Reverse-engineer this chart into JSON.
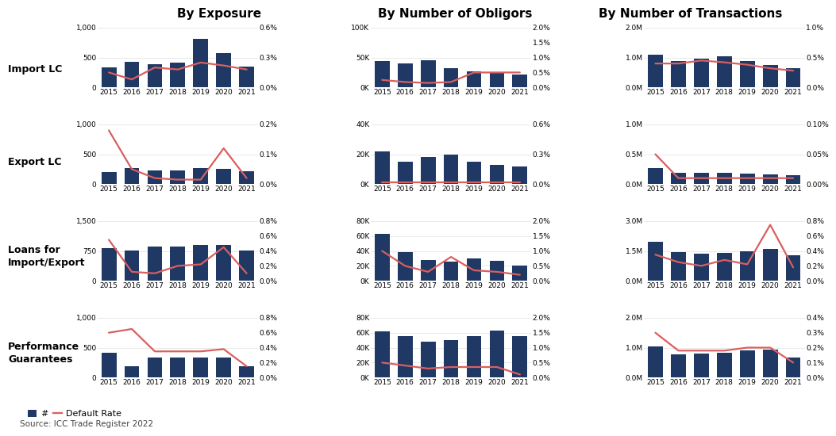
{
  "years": [
    2015,
    2016,
    2017,
    2018,
    2019,
    2020,
    2021
  ],
  "col_titles": [
    "By Exposure",
    "By Number of Obligors",
    "By Number of Transactions"
  ],
  "row_labels": [
    "Import LC",
    "Export LC",
    "Loans for\nImport/Export",
    "Performance\nGuarantees"
  ],
  "bar_color": "#1f3864",
  "line_color": "#d95f5f",
  "bars": {
    "Import LC": {
      "exposure": [
        330,
        430,
        390,
        420,
        820,
        580,
        350
      ],
      "obligors": [
        44000,
        40000,
        46000,
        32000,
        27000,
        24000,
        22000
      ],
      "transactions": [
        1100000,
        870000,
        950000,
        1050000,
        870000,
        750000,
        640000
      ]
    },
    "Export LC": {
      "exposure": [
        200,
        270,
        230,
        225,
        270,
        250,
        220
      ],
      "obligors": [
        22000,
        15000,
        18000,
        20000,
        15000,
        13000,
        12000
      ],
      "transactions": [
        265000,
        190000,
        195000,
        185000,
        170000,
        160000,
        155000
      ]
    },
    "Loans for\nImport/Export": {
      "exposure": [
        830,
        760,
        870,
        860,
        900,
        910,
        760
      ],
      "obligors": [
        63000,
        38000,
        28000,
        26000,
        30000,
        27000,
        20000
      ],
      "transactions": [
        1950000,
        1450000,
        1380000,
        1420000,
        1480000,
        1600000,
        1270000
      ]
    },
    "Performance\nGuarantees": {
      "exposure": [
        420,
        190,
        340,
        340,
        340,
        340,
        190
      ],
      "obligors": [
        62000,
        55000,
        48000,
        50000,
        55000,
        63000,
        55000
      ],
      "transactions": [
        1050000,
        780000,
        790000,
        840000,
        900000,
        940000,
        680000
      ]
    }
  },
  "rates": {
    "Import LC": {
      "exposure": [
        0.0015,
        0.0008,
        0.002,
        0.0018,
        0.0025,
        0.0022,
        0.0018
      ],
      "obligors": [
        0.0025,
        0.0018,
        0.0015,
        0.0018,
        0.005,
        0.005,
        0.005
      ],
      "transactions": [
        0.004,
        0.004,
        0.0045,
        0.0042,
        0.0038,
        0.0032,
        0.0028
      ]
    },
    "Export LC": {
      "exposure": [
        0.0018,
        0.0005,
        0.0002,
        0.00015,
        0.00015,
        0.0012,
        0.0002
      ],
      "obligors": [
        0.0002,
        0.0002,
        0.0002,
        0.0002,
        0.0002,
        0.0002,
        0.0002
      ],
      "transactions": [
        0.0005,
        0.0001,
        0.0001,
        0.0001,
        0.0001,
        0.0001,
        0.0001
      ]
    },
    "Loans for\nImport/Export": {
      "exposure": [
        0.0055,
        0.0012,
        0.001,
        0.002,
        0.0022,
        0.0045,
        0.001
      ],
      "obligors": [
        0.01,
        0.005,
        0.003,
        0.008,
        0.0035,
        0.003,
        0.002
      ],
      "transactions": [
        0.0035,
        0.0025,
        0.002,
        0.0028,
        0.0022,
        0.0075,
        0.0018
      ]
    },
    "Performance\nGuarantees": {
      "exposure": [
        0.006,
        0.0065,
        0.0035,
        0.0035,
        0.0035,
        0.0038,
        0.0015
      ],
      "obligors": [
        0.005,
        0.004,
        0.003,
        0.0035,
        0.0035,
        0.0035,
        0.001
      ],
      "transactions": [
        0.003,
        0.0018,
        0.0018,
        0.0018,
        0.002,
        0.002,
        0.001
      ]
    }
  },
  "ylim_bars": {
    "Import LC": {
      "exposure": [
        0,
        1000
      ],
      "obligors": [
        0,
        100000
      ],
      "transactions": [
        0,
        2000000
      ]
    },
    "Export LC": {
      "exposure": [
        0,
        1000
      ],
      "obligors": [
        0,
        40000
      ],
      "transactions": [
        0,
        1000000
      ]
    },
    "Loans for\nImport/Export": {
      "exposure": [
        0,
        1500
      ],
      "obligors": [
        0,
        80000
      ],
      "transactions": [
        0,
        3000000
      ]
    },
    "Performance\nGuarantees": {
      "exposure": [
        0,
        1000
      ],
      "obligors": [
        0,
        80000
      ],
      "transactions": [
        0,
        2000000
      ]
    }
  },
  "ylim_rates": {
    "Import LC": {
      "exposure": [
        0,
        0.006
      ],
      "obligors": [
        0,
        0.02
      ],
      "transactions": [
        0,
        0.01
      ]
    },
    "Export LC": {
      "exposure": [
        0,
        0.002
      ],
      "obligors": [
        0,
        0.006
      ],
      "transactions": [
        0,
        0.001
      ]
    },
    "Loans for\nImport/Export": {
      "exposure": [
        0,
        0.008
      ],
      "obligors": [
        0,
        0.02
      ],
      "transactions": [
        0,
        0.008
      ]
    },
    "Performance\nGuarantees": {
      "exposure": [
        0,
        0.008
      ],
      "obligors": [
        0,
        0.02
      ],
      "transactions": [
        0,
        0.004
      ]
    }
  },
  "yticks_bars": {
    "Import LC": {
      "exposure": [
        0,
        500,
        1000
      ],
      "obligors": [
        0,
        50000,
        100000
      ],
      "transactions": [
        0,
        1000000,
        2000000
      ]
    },
    "Export LC": {
      "exposure": [
        0,
        500,
        1000
      ],
      "obligors": [
        0,
        20000,
        40000
      ],
      "transactions": [
        0,
        500000,
        1000000
      ]
    },
    "Loans for\nImport/Export": {
      "exposure": [
        0,
        750,
        1500
      ],
      "obligors": [
        0,
        20000,
        40000,
        60000,
        80000
      ],
      "transactions": [
        0,
        1500000,
        3000000
      ]
    },
    "Performance\nGuarantees": {
      "exposure": [
        0,
        500,
        1000
      ],
      "obligors": [
        0,
        20000,
        40000,
        60000,
        80000
      ],
      "transactions": [
        0,
        1000000,
        2000000
      ]
    }
  },
  "yticks_rates": {
    "Import LC": {
      "exposure": [
        0,
        0.003,
        0.006
      ],
      "obligors": [
        0,
        0.005,
        0.01,
        0.015,
        0.02
      ],
      "transactions": [
        0,
        0.005,
        0.01
      ]
    },
    "Export LC": {
      "exposure": [
        0,
        0.001,
        0.002
      ],
      "obligors": [
        0,
        0.003,
        0.006
      ],
      "transactions": [
        0,
        0.0005,
        0.001
      ]
    },
    "Loans for\nImport/Export": {
      "exposure": [
        0,
        0.002,
        0.004,
        0.006,
        0.008
      ],
      "obligors": [
        0,
        0.005,
        0.01,
        0.015,
        0.02
      ],
      "transactions": [
        0,
        0.002,
        0.004,
        0.006,
        0.008
      ]
    },
    "Performance\nGuarantees": {
      "exposure": [
        0,
        0.002,
        0.004,
        0.006,
        0.008
      ],
      "obligors": [
        0,
        0.005,
        0.01,
        0.015,
        0.02
      ],
      "transactions": [
        0,
        0.001,
        0.002,
        0.003,
        0.004
      ]
    }
  },
  "yticklabels_bars": {
    "Import LC": {
      "exposure": [
        "0",
        "500",
        "1,000"
      ],
      "obligors": [
        "0K",
        "50K",
        "100K"
      ],
      "transactions": [
        "0.0M",
        "1.0M",
        "2.0M"
      ]
    },
    "Export LC": {
      "exposure": [
        "0",
        "500",
        "1,000"
      ],
      "obligors": [
        "0K",
        "20K",
        "40K"
      ],
      "transactions": [
        "0.0M",
        "0.5M",
        "1.0M"
      ]
    },
    "Loans for\nImport/Export": {
      "exposure": [
        "0",
        "750",
        "1,500"
      ],
      "obligors": [
        "0K",
        "20K",
        "40K",
        "60K",
        "80K"
      ],
      "transactions": [
        "0.0M",
        "1.5M",
        "3.0M"
      ]
    },
    "Performance\nGuarantees": {
      "exposure": [
        "0",
        "500",
        "1,000"
      ],
      "obligors": [
        "0K",
        "20K",
        "40K",
        "60K",
        "80K"
      ],
      "transactions": [
        "0.0M",
        "1.0M",
        "2.0M"
      ]
    }
  },
  "yticklabels_rates": {
    "Import LC": {
      "exposure": [
        "0.0%",
        "0.3%",
        "0.6%"
      ],
      "obligors": [
        "0.0%",
        "0.5%",
        "1.0%",
        "1.5%",
        "2.0%"
      ],
      "transactions": [
        "0.0%",
        "0.5%",
        "1.0%"
      ]
    },
    "Export LC": {
      "exposure": [
        "0.0%",
        "0.1%",
        "0.2%"
      ],
      "obligors": [
        "0.0%",
        "0.3%",
        "0.6%"
      ],
      "transactions": [
        "0.00%",
        "0.05%",
        "0.10%"
      ]
    },
    "Loans for\nImport/Export": {
      "exposure": [
        "0.0%",
        "0.2%",
        "0.4%",
        "0.6%",
        "0.8%"
      ],
      "obligors": [
        "0.0%",
        "0.5%",
        "1.0%",
        "1.5%",
        "2.0%"
      ],
      "transactions": [
        "0.0%",
        "0.2%",
        "0.4%",
        "0.6%",
        "0.8%"
      ]
    },
    "Performance\nGuarantees": {
      "exposure": [
        "0.0%",
        "0.2%",
        "0.4%",
        "0.6%",
        "0.8%"
      ],
      "obligors": [
        "0.0%",
        "0.5%",
        "1.0%",
        "1.5%",
        "2.0%"
      ],
      "transactions": [
        "0.0%",
        "0.1%",
        "0.2%",
        "0.3%",
        "0.4%"
      ]
    }
  },
  "tick_fontsize": 6.5,
  "row_label_fontsize": 9,
  "col_title_fontsize": 11
}
